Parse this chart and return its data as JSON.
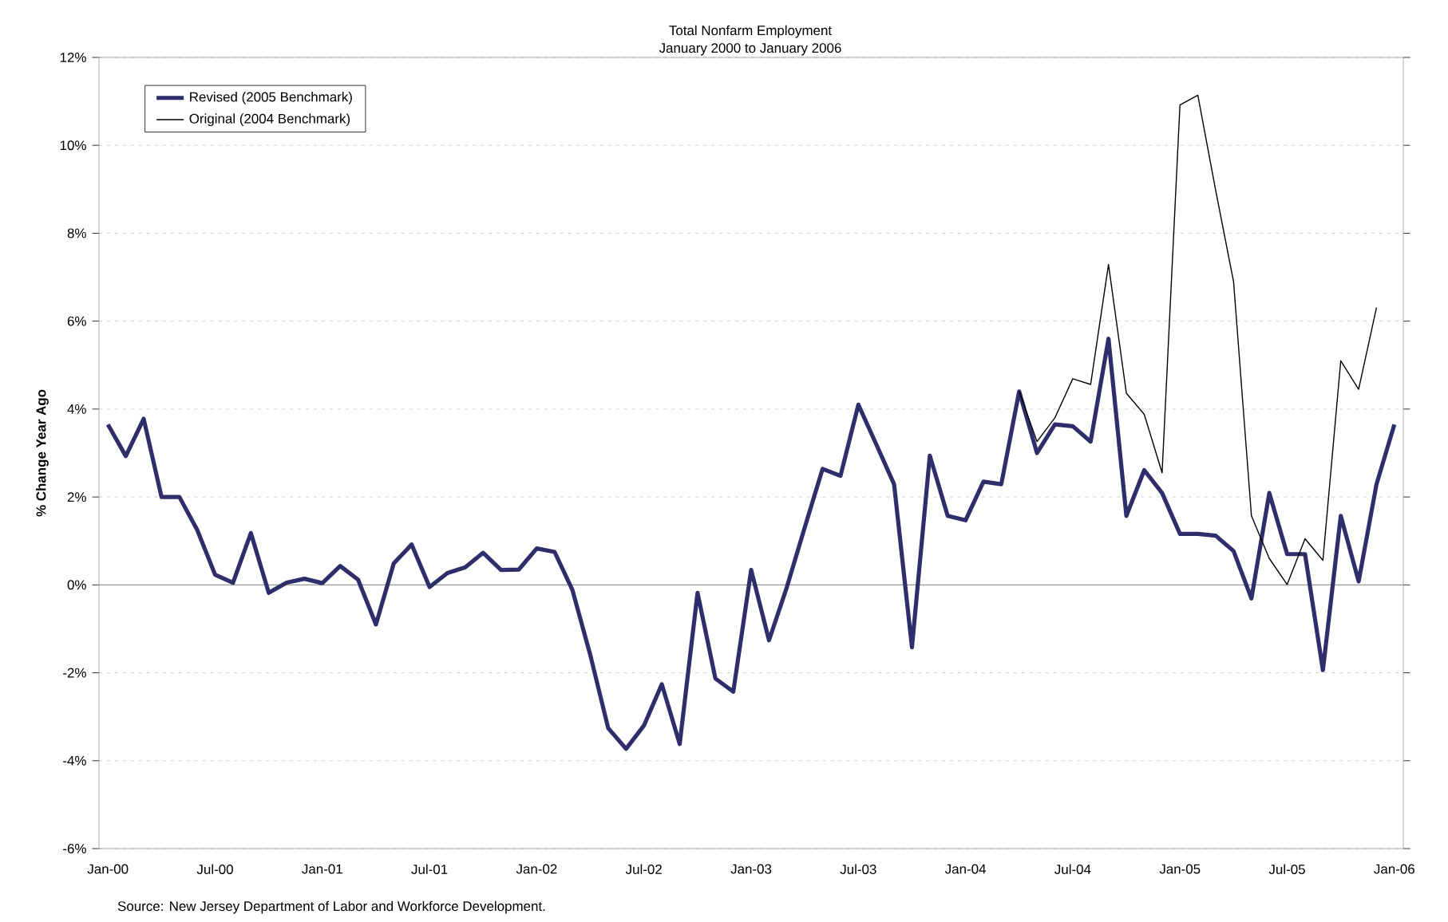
{
  "chart_data": {
    "type": "line",
    "title": "Total Nonfarm Employment",
    "subtitle": "January 2000 to January 2006",
    "ylabel": "% Change Year Ago",
    "categories": [
      "Jan-00",
      null,
      null,
      null,
      null,
      null,
      "Jul-00",
      null,
      null,
      null,
      null,
      null,
      "Jan-01",
      null,
      null,
      null,
      null,
      null,
      "Jul-01",
      null,
      null,
      null,
      null,
      null,
      "Jan-02",
      null,
      null,
      null,
      null,
      null,
      "Jul-02",
      null,
      null,
      null,
      null,
      null,
      "Jan-03",
      null,
      null,
      null,
      null,
      null,
      "Jul-03",
      null,
      null,
      null,
      null,
      null,
      "Jan-04",
      null,
      null,
      null,
      null,
      null,
      "Jul-04",
      null,
      null,
      null,
      null,
      null,
      "Jan-05",
      null,
      null,
      null,
      null,
      null,
      "Jul-05",
      null,
      null,
      null,
      null,
      null,
      "Jan-06"
    ],
    "series": [
      {
        "name": "Revised (2005 Benchmark)",
        "color": "#2e2e6b",
        "values": [
          3.65,
          2.93,
          3.78,
          2.0,
          2.0,
          1.25,
          0.23,
          0.05,
          1.18,
          -0.18,
          0.05,
          0.14,
          0.04,
          0.43,
          0.12,
          -0.9,
          0.49,
          0.92,
          -0.05,
          0.27,
          0.4,
          0.73,
          0.34,
          0.35,
          0.83,
          0.75,
          -0.12,
          -1.6,
          -3.26,
          -3.73,
          -3.2,
          -2.26,
          -3.62,
          -0.18,
          -2.13,
          -2.43,
          0.34,
          -1.26,
          -0.05,
          1.31,
          2.64,
          2.48,
          4.1,
          3.2,
          2.29,
          -1.42,
          2.94,
          1.57,
          1.47,
          2.35,
          2.29,
          4.4,
          3.0,
          3.65,
          3.61,
          3.26,
          5.6,
          1.57,
          2.61,
          2.09,
          1.16,
          1.16,
          1.12,
          0.77,
          -0.31,
          2.09,
          0.7,
          0.7,
          -1.94,
          1.57,
          0.08,
          2.29,
          3.65
        ]
      },
      {
        "name": "Original (2004 Benchmark)",
        "color": "#000000",
        "values": [
          null,
          null,
          null,
          null,
          null,
          null,
          null,
          null,
          null,
          null,
          null,
          null,
          null,
          null,
          null,
          null,
          null,
          null,
          null,
          null,
          null,
          null,
          null,
          null,
          null,
          null,
          null,
          null,
          null,
          null,
          null,
          null,
          null,
          null,
          null,
          null,
          null,
          null,
          null,
          null,
          null,
          null,
          null,
          null,
          null,
          null,
          null,
          null,
          null,
          null,
          null,
          4.4,
          3.26,
          3.8,
          4.69,
          4.56,
          7.29,
          4.36,
          3.88,
          2.55,
          10.92,
          11.14,
          8.97,
          6.9,
          1.57,
          0.6,
          0.01,
          1.05,
          0.56,
          5.1,
          4.45,
          6.31,
          null
        ]
      }
    ],
    "ylim": [
      -6,
      12
    ],
    "yticks": [
      {
        "value": -6,
        "label": "-6%"
      },
      {
        "value": -4,
        "label": "-4%"
      },
      {
        "value": -2,
        "label": "-2%"
      },
      {
        "value": 0,
        "label": "0%"
      },
      {
        "value": 2,
        "label": "2%"
      },
      {
        "value": 4,
        "label": "4%"
      },
      {
        "value": 6,
        "label": "6%"
      },
      {
        "value": 8,
        "label": "8%"
      },
      {
        "value": 10,
        "label": "10%"
      },
      {
        "value": 12,
        "label": "12%"
      }
    ],
    "grid": "y",
    "legend": "top left",
    "marker": "none",
    "line_style": "solid",
    "annotations": [
      "Source: New Jersey Department of Labor and Workforce Development."
    ]
  }
}
